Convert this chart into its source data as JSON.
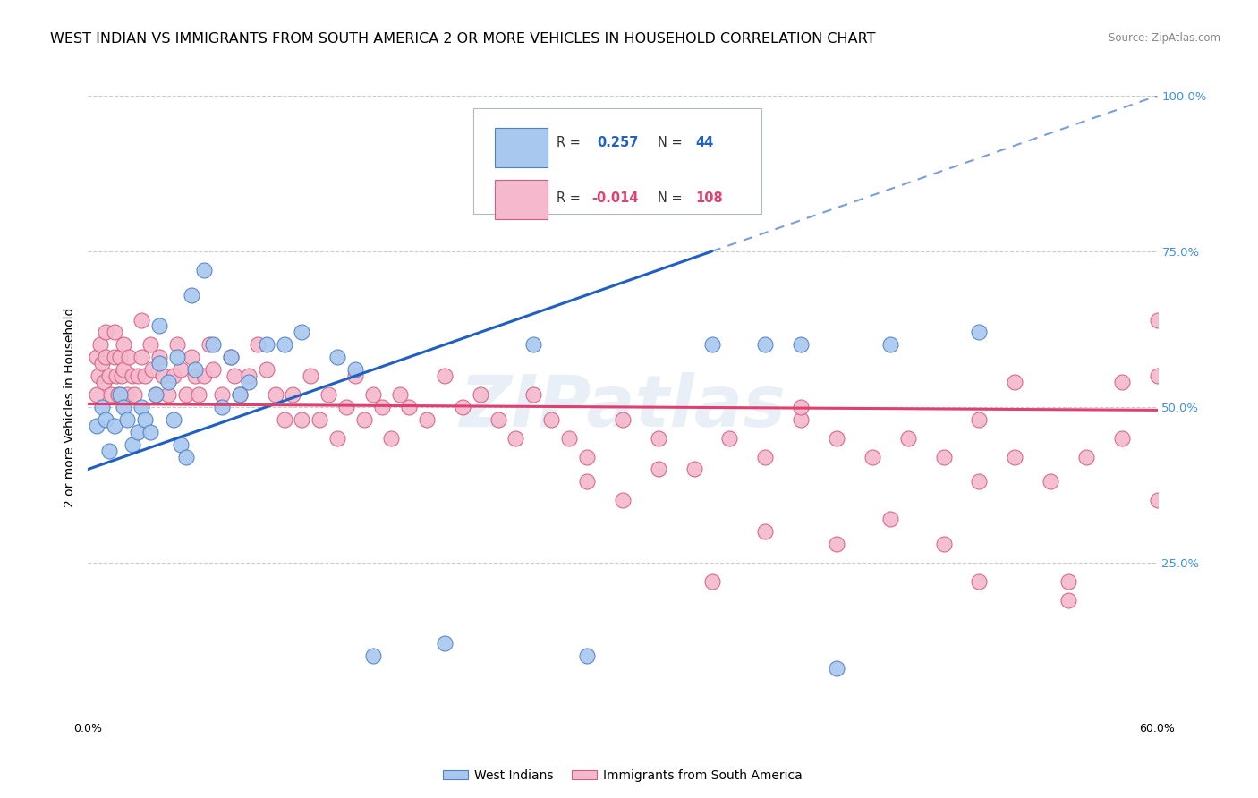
{
  "title": "WEST INDIAN VS IMMIGRANTS FROM SOUTH AMERICA 2 OR MORE VEHICLES IN HOUSEHOLD CORRELATION CHART",
  "source": "Source: ZipAtlas.com",
  "ylabel_label": "2 or more Vehicles in Household",
  "xmin": 0.0,
  "xmax": 0.6,
  "ymin": 0.0,
  "ymax": 1.0,
  "ytick_positions": [
    0.0,
    0.25,
    0.5,
    0.75,
    1.0
  ],
  "ytick_labels": [
    "",
    "25.0%",
    "50.0%",
    "75.0%",
    "100.0%"
  ],
  "blue_R": 0.257,
  "blue_N": 44,
  "pink_R": -0.014,
  "pink_N": 108,
  "blue_color": "#a8c8f0",
  "pink_color": "#f5b8cc",
  "blue_edge_color": "#5080c0",
  "pink_edge_color": "#d06080",
  "blue_line_color": "#2060c0",
  "pink_line_color": "#e04070",
  "grid_color": "#cccccc",
  "background_color": "#ffffff",
  "watermark": "ZIPatlas",
  "blue_line_y0": 0.4,
  "blue_line_y1": 0.75,
  "blue_line_x0": 0.0,
  "blue_line_x1": 0.35,
  "pink_line_y0": 0.505,
  "pink_line_y1": 0.495,
  "blue_scatter_x": [
    0.005,
    0.008,
    0.01,
    0.012,
    0.015,
    0.018,
    0.02,
    0.022,
    0.025,
    0.028,
    0.03,
    0.032,
    0.035,
    0.038,
    0.04,
    0.04,
    0.045,
    0.048,
    0.05,
    0.052,
    0.055,
    0.058,
    0.06,
    0.065,
    0.07,
    0.075,
    0.08,
    0.085,
    0.09,
    0.1,
    0.11,
    0.12,
    0.14,
    0.15,
    0.16,
    0.2,
    0.25,
    0.28,
    0.35,
    0.38,
    0.4,
    0.42,
    0.45,
    0.5
  ],
  "blue_scatter_y": [
    0.47,
    0.5,
    0.48,
    0.43,
    0.47,
    0.52,
    0.5,
    0.48,
    0.44,
    0.46,
    0.5,
    0.48,
    0.46,
    0.52,
    0.63,
    0.57,
    0.54,
    0.48,
    0.58,
    0.44,
    0.42,
    0.68,
    0.56,
    0.72,
    0.6,
    0.5,
    0.58,
    0.52,
    0.54,
    0.6,
    0.6,
    0.62,
    0.58,
    0.56,
    0.1,
    0.12,
    0.6,
    0.1,
    0.6,
    0.6,
    0.6,
    0.08,
    0.6,
    0.62
  ],
  "pink_scatter_x": [
    0.005,
    0.005,
    0.006,
    0.007,
    0.008,
    0.009,
    0.01,
    0.01,
    0.012,
    0.013,
    0.015,
    0.015,
    0.016,
    0.017,
    0.018,
    0.019,
    0.02,
    0.02,
    0.022,
    0.023,
    0.025,
    0.026,
    0.028,
    0.03,
    0.03,
    0.032,
    0.035,
    0.036,
    0.038,
    0.04,
    0.042,
    0.045,
    0.048,
    0.05,
    0.052,
    0.055,
    0.058,
    0.06,
    0.062,
    0.065,
    0.068,
    0.07,
    0.075,
    0.08,
    0.082,
    0.085,
    0.09,
    0.095,
    0.1,
    0.105,
    0.11,
    0.115,
    0.12,
    0.125,
    0.13,
    0.135,
    0.14,
    0.145,
    0.15,
    0.155,
    0.16,
    0.165,
    0.17,
    0.175,
    0.18,
    0.19,
    0.2,
    0.21,
    0.22,
    0.23,
    0.24,
    0.25,
    0.26,
    0.27,
    0.28,
    0.3,
    0.32,
    0.34,
    0.36,
    0.38,
    0.4,
    0.42,
    0.44,
    0.46,
    0.48,
    0.5,
    0.52,
    0.54,
    0.56,
    0.58,
    0.6,
    0.28,
    0.3,
    0.32,
    0.35,
    0.38,
    0.4,
    0.42,
    0.45,
    0.48,
    0.5,
    0.52,
    0.55,
    0.58,
    0.6,
    0.6,
    0.55,
    0.5
  ],
  "pink_scatter_y": [
    0.52,
    0.58,
    0.55,
    0.6,
    0.57,
    0.54,
    0.58,
    0.62,
    0.55,
    0.52,
    0.62,
    0.58,
    0.55,
    0.52,
    0.58,
    0.55,
    0.6,
    0.56,
    0.52,
    0.58,
    0.55,
    0.52,
    0.55,
    0.64,
    0.58,
    0.55,
    0.6,
    0.56,
    0.52,
    0.58,
    0.55,
    0.52,
    0.55,
    0.6,
    0.56,
    0.52,
    0.58,
    0.55,
    0.52,
    0.55,
    0.6,
    0.56,
    0.52,
    0.58,
    0.55,
    0.52,
    0.55,
    0.6,
    0.56,
    0.52,
    0.48,
    0.52,
    0.48,
    0.55,
    0.48,
    0.52,
    0.45,
    0.5,
    0.55,
    0.48,
    0.52,
    0.5,
    0.45,
    0.52,
    0.5,
    0.48,
    0.55,
    0.5,
    0.52,
    0.48,
    0.45,
    0.52,
    0.48,
    0.45,
    0.42,
    0.48,
    0.45,
    0.4,
    0.45,
    0.42,
    0.48,
    0.45,
    0.42,
    0.45,
    0.42,
    0.38,
    0.42,
    0.38,
    0.42,
    0.45,
    0.55,
    0.38,
    0.35,
    0.4,
    0.22,
    0.3,
    0.5,
    0.28,
    0.32,
    0.28,
    0.22,
    0.54,
    0.22,
    0.54,
    0.64,
    0.35,
    0.19,
    0.48
  ],
  "legend_blue_label": "West Indians",
  "legend_pink_label": "Immigrants from South America",
  "title_fontsize": 11.5,
  "axis_fontsize": 9,
  "tick_fontsize": 9,
  "right_ytick_color": "#4090e0",
  "legend_box_color": "#e8f0f8",
  "legend_border_color": "#b0c8e8"
}
